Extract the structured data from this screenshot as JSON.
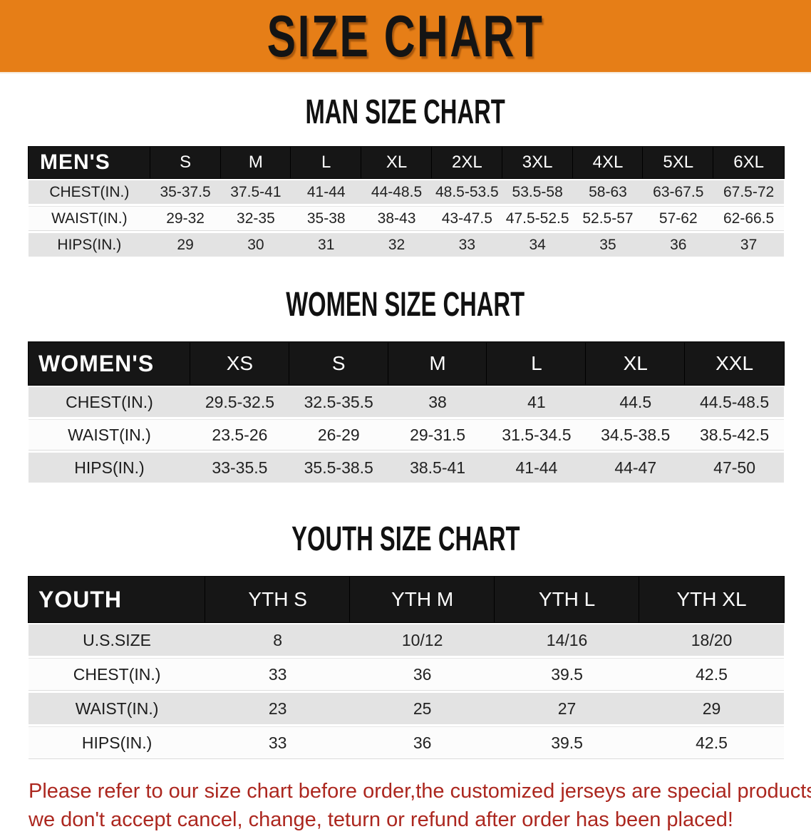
{
  "banner": {
    "title": "SIZE CHART",
    "bg_color": "#E67E17",
    "text_color": "#141414"
  },
  "tables": [
    {
      "id": "mens",
      "heading": "MAN SIZE CHART",
      "corner_label": "MEN'S",
      "columns": [
        "S",
        "M",
        "L",
        "XL",
        "2XL",
        "3XL",
        "4XL",
        "5XL",
        "6XL"
      ],
      "rows": [
        {
          "label": "CHEST(IN.)",
          "values": [
            "35-37.5",
            "37.5-41",
            "41-44",
            "44-48.5",
            "48.5-53.5",
            "53.5-58",
            "58-63",
            "63-67.5",
            "67.5-72"
          ]
        },
        {
          "label": "WAIST(IN.)",
          "values": [
            "29-32",
            "32-35",
            "35-38",
            "38-43",
            "43-47.5",
            "47.5-52.5",
            "52.5-57",
            "57-62",
            "62-66.5"
          ]
        },
        {
          "label": "HIPS(IN.)",
          "values": [
            "29",
            "30",
            "31",
            "32",
            "33",
            "34",
            "35",
            "36",
            "37"
          ]
        }
      ]
    },
    {
      "id": "womens",
      "heading": "WOMEN SIZE CHART",
      "corner_label": "WOMEN'S",
      "columns": [
        "XS",
        "S",
        "M",
        "L",
        "XL",
        "XXL"
      ],
      "rows": [
        {
          "label": "CHEST(IN.)",
          "values": [
            "29.5-32.5",
            "32.5-35.5",
            "38",
            "41",
            "44.5",
            "44.5-48.5"
          ]
        },
        {
          "label": "WAIST(IN.)",
          "values": [
            "23.5-26",
            "26-29",
            "29-31.5",
            "31.5-34.5",
            "34.5-38.5",
            "38.5-42.5"
          ]
        },
        {
          "label": "HIPS(IN.)",
          "values": [
            "33-35.5",
            "35.5-38.5",
            "38.5-41",
            "41-44",
            "44-47",
            "47-50"
          ]
        }
      ]
    },
    {
      "id": "youth",
      "heading": "YOUTH SIZE CHART",
      "corner_label": "YOUTH",
      "columns": [
        "YTH S",
        "YTH M",
        "YTH L",
        "YTH XL"
      ],
      "rows": [
        {
          "label": "U.S.SIZE",
          "values": [
            "8",
            "10/12",
            "14/16",
            "18/20"
          ]
        },
        {
          "label": "CHEST(IN.)",
          "values": [
            "33",
            "36",
            "39.5",
            "42.5"
          ]
        },
        {
          "label": "WAIST(IN.)",
          "values": [
            "23",
            "25",
            "27",
            "29"
          ]
        },
        {
          "label": "HIPS(IN.)",
          "values": [
            "33",
            "36",
            "39.5",
            "42.5"
          ]
        }
      ]
    }
  ],
  "note": {
    "line1": "Please refer to our size chart before order,the customized jerseys are special products,",
    "line2": "we don't accept cancel, change, teturn or refund after order has been placed!",
    "color": "#AC271F"
  },
  "colors": {
    "header_bar": "#161616",
    "row_shaded": "#e3e3e3",
    "row_plain": "#fcfcfc"
  }
}
